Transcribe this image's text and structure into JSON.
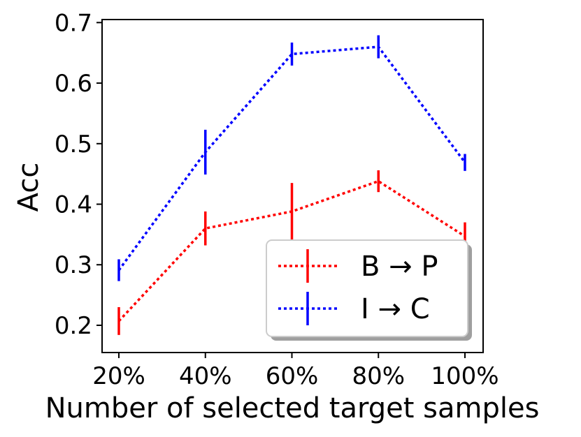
{
  "chart_data": {
    "type": "line",
    "xlabel": "Number of selected target samples",
    "ylabel": "Acc",
    "categories": [
      "20%",
      "40%",
      "60%",
      "80%",
      "100%"
    ],
    "ylim": [
      0.155,
      0.705
    ],
    "yticks": [
      0.2,
      0.3,
      0.4,
      0.5,
      0.6,
      0.7
    ],
    "ytick_labels": [
      "0.2",
      "0.3",
      "0.4",
      "0.5",
      "0.6",
      "0.7"
    ],
    "grid": false,
    "legend_position": "lower-right",
    "series": [
      {
        "name": "B → P",
        "color": "#ff0000",
        "linestyle": "dotted",
        "values": [
          0.207,
          0.36,
          0.388,
          0.438,
          0.347
        ],
        "errors": [
          0.023,
          0.028,
          0.047,
          0.018,
          0.023
        ]
      },
      {
        "name": "I → C",
        "color": "#0000ff",
        "linestyle": "dotted",
        "values": [
          0.291,
          0.486,
          0.648,
          0.66,
          0.469
        ],
        "errors": [
          0.018,
          0.037,
          0.019,
          0.019,
          0.014
        ]
      }
    ]
  }
}
